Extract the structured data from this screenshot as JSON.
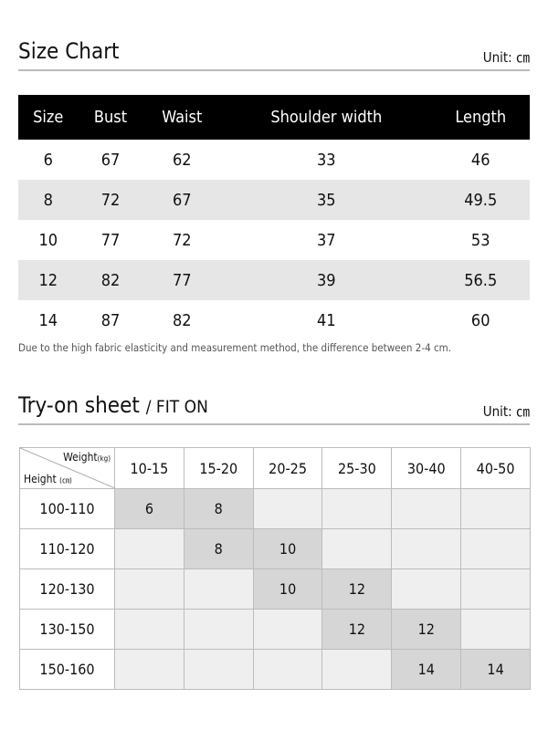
{
  "size_chart": {
    "title": "Size Chart",
    "unit": "Unit: ㎝",
    "headers": [
      "Size",
      "Bust",
      "Waist",
      "Shoulder width",
      "Length"
    ],
    "rows": [
      [
        "6",
        "67",
        "62",
        "33",
        "46"
      ],
      [
        "8",
        "72",
        "67",
        "35",
        "49.5"
      ],
      [
        "10",
        "77",
        "72",
        "37",
        "53"
      ],
      [
        "12",
        "82",
        "77",
        "39",
        "56.5"
      ],
      [
        "14",
        "87",
        "82",
        "41",
        "60"
      ]
    ],
    "note": "Due to the high fabric elasticity and measurement method, the difference between 2-4 cm."
  },
  "fit_sheet": {
    "title": "Try-on sheet",
    "subtitle": "/ FIT ON",
    "unit": "Unit: ㎝",
    "weight_label": "Weight",
    "weight_unit": "(kg)",
    "height_label": "Height",
    "height_unit": "(㎝)",
    "weight_ranges": [
      "10-15",
      "15-20",
      "20-25",
      "25-30",
      "30-40",
      "40-50"
    ],
    "rows": [
      {
        "height": "100-110",
        "cells": [
          "6",
          "8",
          "",
          "",
          "",
          ""
        ]
      },
      {
        "height": "110-120",
        "cells": [
          "",
          "8",
          "10",
          "",
          "",
          ""
        ]
      },
      {
        "height": "120-130",
        "cells": [
          "",
          "",
          "10",
          "12",
          "",
          ""
        ]
      },
      {
        "height": "130-150",
        "cells": [
          "",
          "",
          "",
          "12",
          "12",
          ""
        ]
      },
      {
        "height": "150-160",
        "cells": [
          "",
          "",
          "",
          "",
          "14",
          "14"
        ]
      }
    ]
  }
}
